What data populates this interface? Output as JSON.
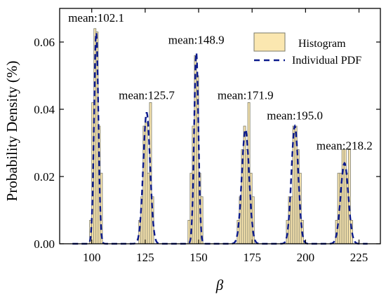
{
  "chart_data": {
    "type": "bar",
    "xlabel": "β",
    "ylabel": "Probability Density (%)",
    "xlim": [
      85,
      235
    ],
    "ylim": [
      0,
      0.07
    ],
    "x_ticks": [
      100,
      125,
      150,
      175,
      200,
      225
    ],
    "y_ticks": [
      0.0,
      0.02,
      0.04,
      0.06
    ],
    "x_tick_labels": [
      "100",
      "125",
      "150",
      "175",
      "200",
      "225"
    ],
    "y_tick_labels": [
      "0.00",
      "0.02",
      "0.04",
      "0.06"
    ],
    "grid": false,
    "legend_position": "top-right",
    "colors": {
      "histogram_fill": "#fbe7b0",
      "histogram_edge": "#7a7a6a",
      "pdf_line": "#0b1a8c"
    },
    "series": [
      {
        "name": "Histogram",
        "type": "histogram",
        "bin_width": 1,
        "bins": [
          {
            "x": 99,
            "y": 0.007
          },
          {
            "x": 100,
            "y": 0.042
          },
          {
            "x": 101,
            "y": 0.064
          },
          {
            "x": 102,
            "y": 0.063
          },
          {
            "x": 103,
            "y": 0.035
          },
          {
            "x": 104,
            "y": 0.021
          },
          {
            "x": 122,
            "y": 0.007
          },
          {
            "x": 123,
            "y": 0.014
          },
          {
            "x": 124,
            "y": 0.035
          },
          {
            "x": 125,
            "y": 0.036
          },
          {
            "x": 126,
            "y": 0.021
          },
          {
            "x": 127,
            "y": 0.042
          },
          {
            "x": 128,
            "y": 0.014
          },
          {
            "x": 145,
            "y": 0.007
          },
          {
            "x": 146,
            "y": 0.021
          },
          {
            "x": 147,
            "y": 0.035
          },
          {
            "x": 148,
            "y": 0.056
          },
          {
            "x": 149,
            "y": 0.05
          },
          {
            "x": 150,
            "y": 0.021
          },
          {
            "x": 151,
            "y": 0.014
          },
          {
            "x": 168,
            "y": 0.007
          },
          {
            "x": 169,
            "y": 0.014
          },
          {
            "x": 170,
            "y": 0.028
          },
          {
            "x": 171,
            "y": 0.035
          },
          {
            "x": 172,
            "y": 0.028
          },
          {
            "x": 173,
            "y": 0.042
          },
          {
            "x": 174,
            "y": 0.021
          },
          {
            "x": 175,
            "y": 0.014
          },
          {
            "x": 191,
            "y": 0.007
          },
          {
            "x": 192,
            "y": 0.014
          },
          {
            "x": 193,
            "y": 0.014
          },
          {
            "x": 194,
            "y": 0.035
          },
          {
            "x": 195,
            "y": 0.035
          },
          {
            "x": 196,
            "y": 0.028
          },
          {
            "x": 197,
            "y": 0.021
          },
          {
            "x": 198,
            "y": 0.007
          },
          {
            "x": 214,
            "y": 0.007
          },
          {
            "x": 215,
            "y": 0.021
          },
          {
            "x": 216,
            "y": 0.021
          },
          {
            "x": 217,
            "y": 0.028
          },
          {
            "x": 218,
            "y": 0.028
          },
          {
            "x": 219,
            "y": 0.021
          },
          {
            "x": 220,
            "y": 0.028
          },
          {
            "x": 221,
            "y": 0.007
          }
        ]
      },
      {
        "name": "Individual PDF",
        "type": "line",
        "style": "dashed",
        "components": [
          {
            "mean": 102.1,
            "sd": 1.0,
            "peak": 0.063
          },
          {
            "mean": 125.7,
            "sd": 1.6,
            "peak": 0.039
          },
          {
            "mean": 148.9,
            "sd": 1.0,
            "peak": 0.057
          },
          {
            "mean": 171.9,
            "sd": 1.7,
            "peak": 0.034
          },
          {
            "mean": 195.0,
            "sd": 1.6,
            "peak": 0.035
          },
          {
            "mean": 218.2,
            "sd": 1.8,
            "peak": 0.024
          }
        ]
      }
    ],
    "annotations": [
      {
        "text": "mean:102.1",
        "x": 102.1,
        "y": 0.066
      },
      {
        "text": "mean:125.7",
        "x": 125.7,
        "y": 0.043
      },
      {
        "text": "mean:148.9",
        "x": 148.9,
        "y": 0.0595
      },
      {
        "text": "mean:171.9",
        "x": 171.9,
        "y": 0.043
      },
      {
        "text": "mean:195.0",
        "x": 195.0,
        "y": 0.037
      },
      {
        "text": "mean:218.2",
        "x": 218.2,
        "y": 0.028
      }
    ]
  }
}
